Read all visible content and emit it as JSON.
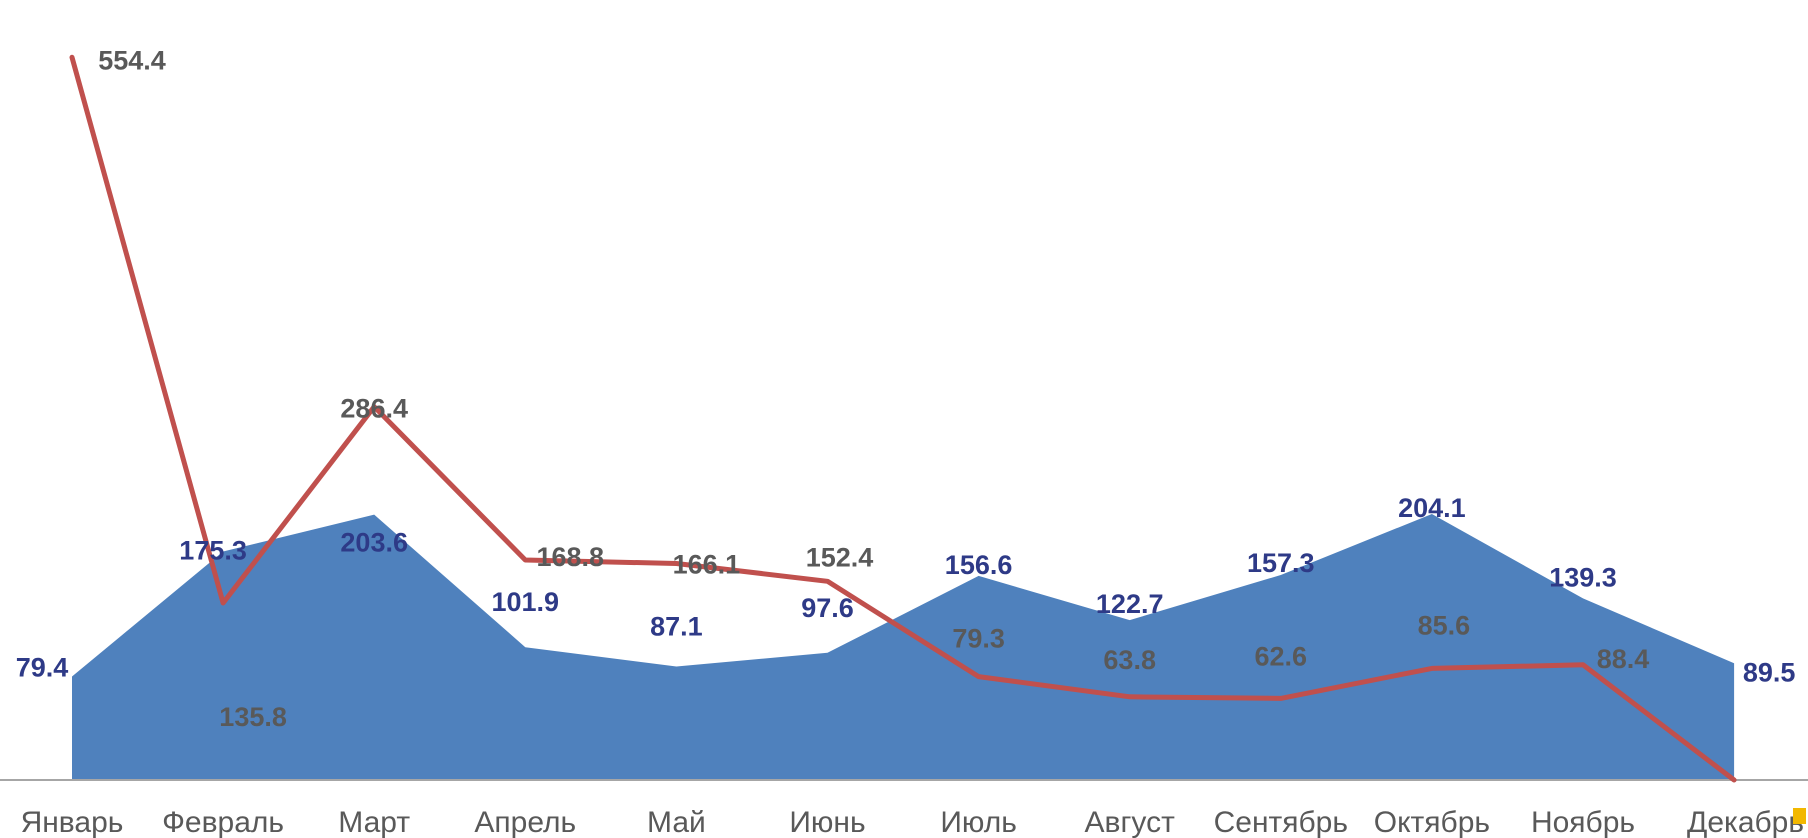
{
  "chart_data": {
    "type": "area",
    "categories": [
      "Январь",
      "Февраль",
      "Март",
      "Апрель",
      "Май",
      "Июнь",
      "Июль",
      "Август",
      "Сентябрь",
      "Октябрь",
      "Ноябрь",
      "Декабрь"
    ],
    "series": [
      {
        "type": "area",
        "color": "#4f81bd",
        "label_color": "#2e3a87",
        "values": [
          79.4,
          175.3,
          203.6,
          101.9,
          87.1,
          97.6,
          156.6,
          122.7,
          157.3,
          204.1,
          139.3,
          89.5
        ],
        "labels": [
          "79.4",
          "175.3",
          "203.6",
          "101.9",
          "87.1",
          "97.6",
          "156.6",
          "122.7",
          "157.3",
          "204.1",
          "139.3",
          "89.5"
        ]
      },
      {
        "type": "line",
        "color": "#c0504d",
        "label_color": "#595959",
        "values": [
          554.4,
          135.8,
          286.4,
          168.8,
          166.1,
          152.4,
          79.3,
          63.8,
          62.6,
          85.6,
          88.4,
          0
        ],
        "labels": [
          "554.4",
          "135.8",
          "286.4",
          "168.8",
          "166.1",
          "152.4",
          "79.3",
          "63.8",
          "62.6",
          "85.6",
          "88.4",
          ""
        ]
      }
    ],
    "ylim": [
      0,
      560
    ],
    "grid": false,
    "legend": "none",
    "axis_color": "#a6a6a6",
    "tick_color": "#595959",
    "marker_color": "#f2b800"
  }
}
